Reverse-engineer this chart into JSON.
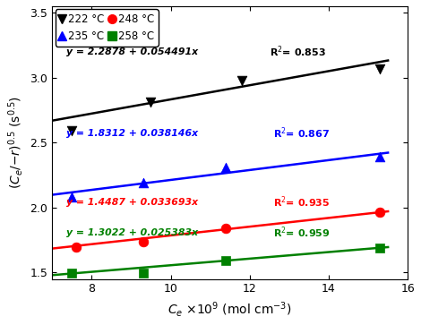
{
  "xlabel_parts": [
    "$C_e$",
    "$\\times 10^9$",
    " (mol cm$^{-3}$)"
  ],
  "ylabel": "$(C_e/{-r})^{0.5}$ (s$^{0.5}$)",
  "xlim": [
    7,
    16
  ],
  "ylim": [
    1.45,
    3.55
  ],
  "xticks": [
    8,
    10,
    12,
    14,
    16
  ],
  "yticks": [
    1.5,
    2.0,
    2.5,
    3.0,
    3.5
  ],
  "series": [
    {
      "label": "222 °C",
      "color": "black",
      "marker": "v",
      "points_x": [
        7.5,
        9.5,
        11.8,
        15.3
      ],
      "points_y": [
        2.595,
        2.815,
        2.975,
        3.07
      ],
      "fit_intercept": 2.2878,
      "fit_slope": 0.054491,
      "fit_xrange": [
        7.0,
        15.5
      ],
      "eq_text": "y = 2.2878 + 0.054491x",
      "r2_text": "R$^2$= 0.853",
      "eq_x": 7.35,
      "eq_y": 3.2,
      "r2_x": 12.5,
      "r2_y": 3.2
    },
    {
      "label": "235 °C",
      "color": "blue",
      "marker": "^",
      "points_x": [
        7.5,
        9.3,
        11.4,
        15.3
      ],
      "points_y": [
        2.08,
        2.195,
        2.31,
        2.39
      ],
      "fit_intercept": 1.8312,
      "fit_slope": 0.038146,
      "fit_xrange": [
        7.0,
        15.5
      ],
      "eq_text": "y = 1.8312 + 0.038146x",
      "r2_text": "R$^2$= 0.867",
      "eq_x": 7.35,
      "eq_y": 2.57,
      "r2_x": 12.6,
      "r2_y": 2.57
    },
    {
      "label": "248 °C",
      "color": "red",
      "marker": "o",
      "points_x": [
        7.6,
        9.3,
        11.4,
        15.3
      ],
      "points_y": [
        1.695,
        1.74,
        1.84,
        1.965
      ],
      "fit_intercept": 1.4487,
      "fit_slope": 0.033693,
      "fit_xrange": [
        7.0,
        15.5
      ],
      "eq_text": "y = 1.4487 + 0.033693x",
      "r2_text": "R$^2$= 0.935",
      "eq_x": 7.35,
      "eq_y": 2.04,
      "r2_x": 12.6,
      "r2_y": 2.04
    },
    {
      "label": "258 °C",
      "color": "green",
      "marker": "s",
      "points_x": [
        7.5,
        9.3,
        11.4,
        15.3
      ],
      "points_y": [
        1.498,
        1.497,
        1.59,
        1.69
      ],
      "fit_intercept": 1.3022,
      "fit_slope": 0.025383,
      "fit_xrange": [
        7.0,
        15.5
      ],
      "eq_text": "y = 1.3022 + 0.025383x",
      "r2_text": "R$^2$= 0.959",
      "eq_x": 7.35,
      "eq_y": 1.805,
      "r2_x": 12.6,
      "r2_y": 1.805
    }
  ],
  "legend_entries_row1": [
    {
      "label": "222 °C",
      "color": "black",
      "marker": "v"
    },
    {
      "label": "248 °C",
      "color": "red",
      "marker": "o"
    }
  ],
  "legend_entries_row2": [
    {
      "label": "235 °C",
      "color": "blue",
      "marker": "^"
    },
    {
      "label": "258 °C",
      "color": "green",
      "marker": "s"
    }
  ]
}
